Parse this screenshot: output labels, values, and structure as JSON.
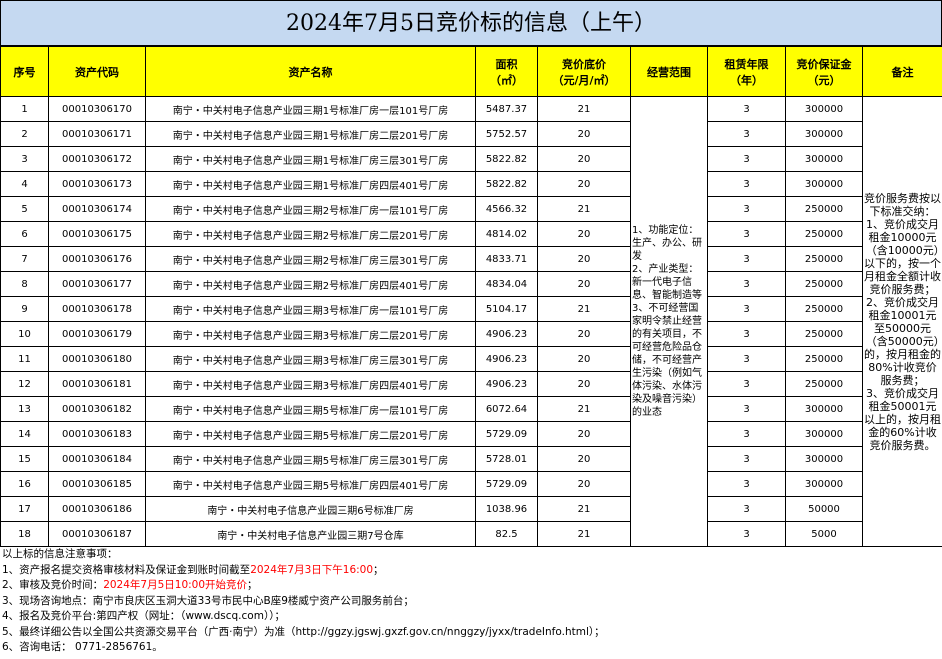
{
  "title": "2024年7月5日竞价标的信息（上午）",
  "table": {
    "header": [
      [
        "序号"
      ],
      [
        "资产代码"
      ],
      [
        "资产名称"
      ],
      [
        "面积",
        "（㎡）"
      ],
      [
        "竞价底价",
        "（元/月/㎡）"
      ],
      [
        "经营范围"
      ],
      [
        "租赁年限",
        "（年）"
      ],
      [
        "竞价保证金",
        "（元）"
      ],
      [
        "备注"
      ]
    ],
    "rows": [
      [
        "1",
        "00010306170",
        "南宁・中关村电子信息产业园三期1号标准厂房一层101号厂房",
        "5487.37",
        "21",
        "3",
        "300000"
      ],
      [
        "2",
        "00010306171",
        "南宁・中关村电子信息产业园三期1号标准厂房二层201号厂房",
        "5752.57",
        "20",
        "3",
        "300000"
      ],
      [
        "3",
        "00010306172",
        "南宁・中关村电子信息产业园三期1号标准厂房三层301号厂房",
        "5822.82",
        "20",
        "3",
        "300000"
      ],
      [
        "4",
        "00010306173",
        "南宁・中关村电子信息产业园三期1号标准厂房四层401号厂房",
        "5822.82",
        "20",
        "3",
        "300000"
      ],
      [
        "5",
        "00010306174",
        "南宁・中关村电子信息产业园三期2号标准厂房一层101号厂房",
        "4566.32",
        "21",
        "3",
        "250000"
      ],
      [
        "6",
        "00010306175",
        "南宁・中关村电子信息产业园三期2号标准厂房二层201号厂房",
        "4814.02",
        "20",
        "3",
        "250000"
      ],
      [
        "7",
        "00010306176",
        "南宁・中关村电子信息产业园三期2号标准厂房三层301号厂房",
        "4833.71",
        "20",
        "3",
        "250000"
      ],
      [
        "8",
        "00010306177",
        "南宁・中关村电子信息产业园三期2号标准厂房四层401号厂房",
        "4834.04",
        "20",
        "3",
        "250000"
      ],
      [
        "9",
        "00010306178",
        "南宁・中关村电子信息产业园三期3号标准厂房一层101号厂房",
        "5104.17",
        "21",
        "3",
        "250000"
      ],
      [
        "10",
        "00010306179",
        "南宁・中关村电子信息产业园三期3号标准厂房二层201号厂房",
        "4906.23",
        "20",
        "3",
        "250000"
      ],
      [
        "11",
        "00010306180",
        "南宁・中关村电子信息产业园三期3号标准厂房三层301号厂房",
        "4906.23",
        "20",
        "3",
        "250000"
      ],
      [
        "12",
        "00010306181",
        "南宁・中关村电子信息产业园三期3号标准厂房四层401号厂房",
        "4906.23",
        "20",
        "3",
        "250000"
      ],
      [
        "13",
        "00010306182",
        "南宁・中关村电子信息产业园三期5号标准厂房一层101号厂房",
        "6072.64",
        "21",
        "3",
        "300000"
      ],
      [
        "14",
        "00010306183",
        "南宁・中关村电子信息产业园三期5号标准厂房二层201号厂房",
        "5729.09",
        "20",
        "3",
        "300000"
      ],
      [
        "15",
        "00010306184",
        "南宁・中关村电子信息产业园三期5号标准厂房三层301号厂房",
        "5728.01",
        "20",
        "3",
        "300000"
      ],
      [
        "16",
        "00010306185",
        "南宁・中关村电子信息产业园三期5号标准厂房四层401号厂房",
        "5729.09",
        "20",
        "3",
        "300000"
      ],
      [
        "17",
        "00010306186",
        "南宁・中关村电子信息产业园三期6号标准厂房",
        "1038.96",
        "21",
        "3",
        "50000"
      ],
      [
        "18",
        "00010306187",
        "南宁・中关村电子信息产业园三期7号仓库",
        "82.5",
        "21",
        "3",
        "5000"
      ]
    ],
    "scope": [
      "1、功能定位：生产、办公、研发",
      "2、产业类型：新一代电子信息、智能制造等",
      "3、不可经营国家明令禁止经营的有关项目，不可经营危险品仓储，不可经营产生污染（例如气体污染、水体污染及噪音污染）的业态"
    ],
    "remarks": [
      "竞价服务费按以下标准交纳：",
      "1、竞价成交月租金10000元（含10000元）以下的，按一个月租金全额计收竞价服务费；",
      "2、竞价成交月租金10001元至50000元（含50000元）的，按月租金的80%计收竞价服务费；",
      "3、竞价成交月租金50001元以上的，按月租金的60%计收竞价服务费。"
    ]
  },
  "notes": {
    "heading": "以上标的信息注意事项：",
    "lines": [
      [
        {
          "text": "1、资产报名提交资格审核材料及保证金到账时间截至"
        },
        {
          "text": "2024年7月3日下午16:00",
          "color": "#ff0000"
        },
        {
          "text": "；"
        }
      ],
      [
        {
          "text": "2、审核及竞价时间："
        },
        {
          "text": "2024年7月5日10:00开始竞价",
          "color": "#ff0000"
        },
        {
          "text": "；"
        }
      ],
      [
        {
          "text": "3、现场咨询地点：南宁市良庆区玉洞大道33号市民中心B座9楼威宁资产公司服务前台；"
        }
      ],
      [
        {
          "text": "4、报名及竞价平台:第四产权（网址：（www.dscq.com））；"
        }
      ],
      [
        {
          "text": "5、最终详细公告以全国公共资源交易平台（广西·南宁）为准（http://ggzy.jgswj.gxzf.gov.cn/nnggzy/jyxx/tradeInfo.html）；"
        }
      ],
      [
        {
          "text": "6、咨询电话： 0771-2856761。"
        }
      ]
    ]
  }
}
